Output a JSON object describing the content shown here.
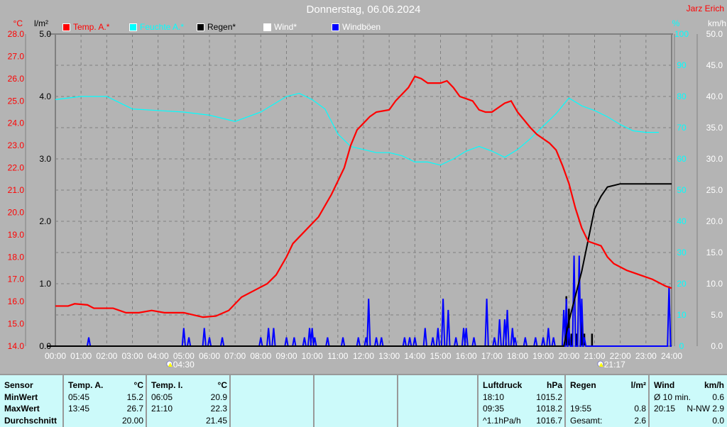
{
  "header": {
    "title": "Donnerstag, 06.06.2024",
    "owner": "Jarz Erich"
  },
  "chart_data": {
    "type": "line",
    "title": "Donnerstag, 06.06.2024",
    "x_range": [
      0,
      24
    ],
    "x_ticks": [
      "00:00",
      "01:00",
      "02:00",
      "03:00",
      "04:00",
      "05:00",
      "06:00",
      "07:00",
      "08:00",
      "09:00",
      "10:00",
      "11:00",
      "12:00",
      "13:00",
      "14:00",
      "15:00",
      "16:00",
      "17:00",
      "18:00",
      "19:00",
      "20:00",
      "21:00",
      "22:00",
      "23:00",
      "24:00"
    ],
    "axes": {
      "temp": {
        "unit": "°C",
        "range": [
          14,
          28
        ],
        "ticks": [
          "28.0",
          "27.0",
          "26.0",
          "25.0",
          "24.0",
          "23.0",
          "22.0",
          "21.0",
          "20.0",
          "19.0",
          "18.0",
          "17.0",
          "16.0",
          "15.0",
          "14.0"
        ]
      },
      "rain": {
        "unit": "l/m²",
        "range": [
          0,
          5
        ],
        "ticks": [
          "5.0",
          "4.0",
          "3.0",
          "2.0",
          "1.0",
          "0.0"
        ]
      },
      "humidity": {
        "unit": "%",
        "range": [
          0,
          100
        ],
        "ticks": [
          "100",
          "90",
          "80",
          "70",
          "60",
          "50",
          "40",
          "30",
          "20",
          "10",
          "0"
        ]
      },
      "wind": {
        "unit": "km/h",
        "range": [
          0,
          50
        ],
        "ticks": [
          "50.0",
          "45.0",
          "40.0",
          "35.0",
          "30.0",
          "25.0",
          "20.0",
          "15.0",
          "10.0",
          "5.0",
          "0.0"
        ]
      }
    },
    "legend": [
      {
        "label": "Temp. A.*",
        "color": "#ff0000"
      },
      {
        "label": "Feuchte A.*",
        "color": "#00ffff"
      },
      {
        "label": "Regen*",
        "color": "#000000"
      },
      {
        "label": "Wind*",
        "color": "#ffffff"
      },
      {
        "label": "Windböen",
        "color": "#0000ff"
      }
    ],
    "grid": true,
    "series": {
      "temp": [
        [
          0,
          15.8
        ],
        [
          0.5,
          15.8
        ],
        [
          0.75,
          15.9
        ],
        [
          1.25,
          15.85
        ],
        [
          1.5,
          15.7
        ],
        [
          2.25,
          15.7
        ],
        [
          2.75,
          15.5
        ],
        [
          3.25,
          15.5
        ],
        [
          3.75,
          15.6
        ],
        [
          4.25,
          15.5
        ],
        [
          5,
          15.5
        ],
        [
          5.75,
          15.3
        ],
        [
          6.25,
          15.35
        ],
        [
          6.75,
          15.6
        ],
        [
          7.25,
          16.2
        ],
        [
          7.75,
          16.5
        ],
        [
          8.25,
          16.8
        ],
        [
          8.6,
          17.2
        ],
        [
          9,
          18.0
        ],
        [
          9.25,
          18.6
        ],
        [
          9.75,
          19.2
        ],
        [
          10.25,
          19.8
        ],
        [
          10.75,
          20.8
        ],
        [
          11.25,
          22.0
        ],
        [
          11.5,
          23.0
        ],
        [
          11.75,
          23.7
        ],
        [
          12.25,
          24.3
        ],
        [
          12.5,
          24.5
        ],
        [
          13,
          24.6
        ],
        [
          13.25,
          25.0
        ],
        [
          13.75,
          25.6
        ],
        [
          14,
          26.1
        ],
        [
          14.25,
          26.0
        ],
        [
          14.5,
          25.8
        ],
        [
          15,
          25.8
        ],
        [
          15.25,
          25.9
        ],
        [
          15.5,
          25.6
        ],
        [
          15.75,
          25.2
        ],
        [
          16.25,
          25.0
        ],
        [
          16.5,
          24.6
        ],
        [
          16.75,
          24.5
        ],
        [
          17,
          24.5
        ],
        [
          17.5,
          24.9
        ],
        [
          17.75,
          25.0
        ],
        [
          18,
          24.5
        ],
        [
          18.5,
          23.8
        ],
        [
          18.75,
          23.5
        ],
        [
          19.25,
          23.1
        ],
        [
          19.5,
          22.8
        ],
        [
          19.75,
          22.1
        ],
        [
          20,
          21.3
        ],
        [
          20.25,
          20.2
        ],
        [
          20.5,
          19.3
        ],
        [
          20.75,
          18.7
        ],
        [
          21.25,
          18.5
        ],
        [
          21.5,
          18.0
        ],
        [
          21.75,
          17.7
        ],
        [
          22.25,
          17.4
        ],
        [
          22.75,
          17.2
        ],
        [
          23.25,
          17.0
        ],
        [
          23.75,
          16.7
        ],
        [
          24,
          16.6
        ]
      ],
      "humidity": [
        [
          0,
          79
        ],
        [
          1,
          80
        ],
        [
          2,
          80
        ],
        [
          3,
          76
        ],
        [
          4,
          75.5
        ],
        [
          5,
          75
        ],
        [
          6,
          74
        ],
        [
          7,
          72
        ],
        [
          8,
          75
        ],
        [
          9,
          80
        ],
        [
          9.5,
          81
        ],
        [
          10,
          79
        ],
        [
          10.5,
          76
        ],
        [
          11,
          68
        ],
        [
          11.5,
          64
        ],
        [
          12,
          63
        ],
        [
          12.5,
          62
        ],
        [
          13,
          62
        ],
        [
          13.5,
          61
        ],
        [
          14,
          59
        ],
        [
          14.5,
          59
        ],
        [
          15,
          58
        ],
        [
          15.5,
          60
        ],
        [
          16,
          62.5
        ],
        [
          16.5,
          64
        ],
        [
          17,
          62.5
        ],
        [
          17.5,
          60.5
        ],
        [
          18,
          63
        ],
        [
          18.5,
          66.5
        ],
        [
          19,
          70.5
        ],
        [
          19.5,
          74.5
        ],
        [
          20,
          79.5
        ],
        [
          20.5,
          77
        ],
        [
          21,
          75.5
        ],
        [
          21.5,
          73.5
        ],
        [
          22,
          71
        ],
        [
          22.5,
          69
        ],
        [
          23,
          68.5
        ],
        [
          23.5,
          68.5
        ]
      ],
      "rain_cumulative": [
        [
          19.8,
          0
        ],
        [
          20,
          0.4
        ],
        [
          20.25,
          0.8
        ],
        [
          20.5,
          1.2
        ],
        [
          20.75,
          1.7
        ],
        [
          21,
          2.2
        ],
        [
          21.25,
          2.4
        ],
        [
          21.5,
          2.55
        ],
        [
          22,
          2.6
        ],
        [
          24,
          2.6
        ]
      ],
      "rain_bars": [
        [
          19.9,
          0.8
        ],
        [
          20.0,
          0.6
        ],
        [
          20.1,
          0.2
        ],
        [
          20.3,
          0.2
        ],
        [
          20.5,
          0.4
        ],
        [
          20.6,
          0.2
        ],
        [
          20.9,
          0.2
        ]
      ],
      "wind": [
        [
          0,
          0
        ],
        [
          24,
          0
        ]
      ],
      "gusts": [
        [
          1.3,
          1.4
        ],
        [
          5.0,
          2.9
        ],
        [
          5.2,
          1.4
        ],
        [
          5.8,
          2.9
        ],
        [
          6.0,
          1.4
        ],
        [
          6.5,
          1.4
        ],
        [
          8.0,
          1.4
        ],
        [
          8.3,
          2.9
        ],
        [
          8.5,
          2.9
        ],
        [
          9.0,
          1.4
        ],
        [
          9.3,
          1.4
        ],
        [
          9.7,
          1.4
        ],
        [
          9.9,
          2.9
        ],
        [
          10.0,
          2.9
        ],
        [
          10.1,
          1.4
        ],
        [
          10.6,
          1.4
        ],
        [
          11.2,
          1.4
        ],
        [
          11.8,
          1.4
        ],
        [
          12.1,
          1.4
        ],
        [
          12.2,
          7.6
        ],
        [
          12.5,
          1.4
        ],
        [
          12.7,
          1.4
        ],
        [
          13.6,
          1.4
        ],
        [
          13.8,
          1.4
        ],
        [
          14.0,
          1.4
        ],
        [
          14.4,
          2.9
        ],
        [
          14.7,
          1.4
        ],
        [
          14.9,
          2.9
        ],
        [
          15.1,
          7.6
        ],
        [
          15.3,
          5.8
        ],
        [
          15.6,
          1.4
        ],
        [
          15.9,
          2.9
        ],
        [
          16.0,
          2.9
        ],
        [
          16.3,
          1.4
        ],
        [
          16.8,
          7.6
        ],
        [
          17.1,
          1.4
        ],
        [
          17.3,
          4.3
        ],
        [
          17.5,
          4.3
        ],
        [
          17.6,
          5.8
        ],
        [
          17.8,
          2.9
        ],
        [
          17.9,
          1.4
        ],
        [
          18.3,
          1.4
        ],
        [
          18.7,
          1.4
        ],
        [
          19.0,
          1.4
        ],
        [
          19.2,
          2.9
        ],
        [
          19.4,
          1.4
        ],
        [
          19.8,
          5.8
        ],
        [
          19.9,
          7.6
        ],
        [
          20.0,
          2.9
        ],
        [
          20.2,
          14.5
        ],
        [
          20.4,
          14.5
        ],
        [
          20.5,
          7.6
        ],
        [
          20.6,
          1.4
        ],
        [
          23.9,
          9.6
        ]
      ]
    },
    "sun": {
      "sunrise": "04:30",
      "sunrise_h": 4.5,
      "sunset": "21:17",
      "sunset_h": 21.283
    }
  },
  "table": {
    "sensor": {
      "header": "Sensor",
      "rows": [
        "MinWert",
        "MaxWert",
        "Durchschnitt"
      ]
    },
    "temp_a": {
      "header": "Temp. A.",
      "unit": "°C",
      "rows": [
        [
          "05:45",
          "15.2"
        ],
        [
          "13:45",
          "26.7"
        ],
        [
          "",
          "20.00"
        ]
      ]
    },
    "temp_i": {
      "header": "Temp. I.",
      "unit": "°C",
      "rows": [
        [
          "06:05",
          "20.9"
        ],
        [
          "21:10",
          "22.3"
        ],
        [
          "",
          "21.45"
        ]
      ]
    },
    "pressure": {
      "header": "Luftdruck",
      "unit": "hPa",
      "rows": [
        [
          "18:10",
          "1015.2"
        ],
        [
          "09:35",
          "1018.2"
        ],
        [
          "^1.1hPa/h",
          "1016.7"
        ]
      ]
    },
    "rain": {
      "header": "Regen",
      "unit": "l/m²",
      "rows": [
        [
          "",
          ""
        ],
        [
          "19:55",
          "0.8"
        ],
        [
          "Gesamt:",
          "2.6"
        ]
      ]
    },
    "wind": {
      "header": "Wind",
      "unit": "km/h",
      "rows": [
        [
          "Ø 10 min.",
          "0.6"
        ],
        [
          "20:15",
          "N-NW 2.9"
        ],
        [
          "",
          "0.0"
        ]
      ]
    }
  }
}
